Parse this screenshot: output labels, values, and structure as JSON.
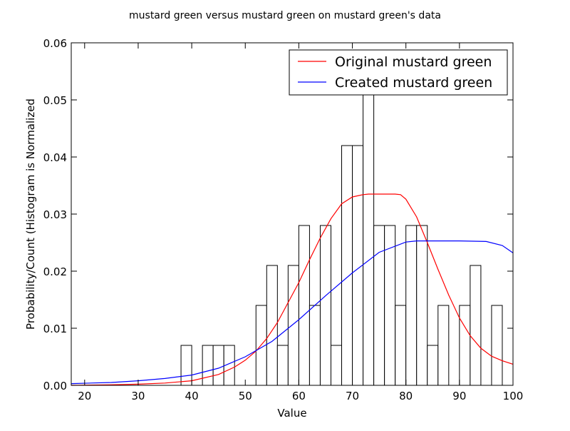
{
  "chart_data": {
    "type": "histogram_with_lines",
    "title": "mustard green versus mustard green on mustard green's data",
    "xlabel": "Value",
    "ylabel": "Probability/Count (Histogram is Normalized",
    "xlim": [
      17.5,
      100
    ],
    "ylim": [
      0,
      0.06
    ],
    "xticks": [
      20,
      30,
      40,
      50,
      60,
      70,
      80,
      90,
      100
    ],
    "yticks": [
      0.0,
      0.01,
      0.02,
      0.03,
      0.04,
      0.05,
      0.06
    ],
    "ytick_labels": [
      "0.00",
      "0.01",
      "0.02",
      "0.03",
      "0.04",
      "0.05",
      "0.06"
    ],
    "legend_position": "top-right",
    "histogram": {
      "bin_width": 2,
      "bins": [
        {
          "x0": 38,
          "value": 0.007
        },
        {
          "x0": 42,
          "value": 0.007
        },
        {
          "x0": 44,
          "value": 0.007
        },
        {
          "x0": 46,
          "value": 0.007
        },
        {
          "x0": 52,
          "value": 0.014
        },
        {
          "x0": 54,
          "value": 0.021
        },
        {
          "x0": 56,
          "value": 0.007
        },
        {
          "x0": 58,
          "value": 0.021
        },
        {
          "x0": 60,
          "value": 0.028
        },
        {
          "x0": 62,
          "value": 0.014
        },
        {
          "x0": 64,
          "value": 0.028
        },
        {
          "x0": 66,
          "value": 0.007
        },
        {
          "x0": 68,
          "value": 0.042
        },
        {
          "x0": 70,
          "value": 0.042
        },
        {
          "x0": 72,
          "value": 0.056
        },
        {
          "x0": 74,
          "value": 0.028
        },
        {
          "x0": 76,
          "value": 0.028
        },
        {
          "x0": 78,
          "value": 0.014
        },
        {
          "x0": 80,
          "value": 0.028
        },
        {
          "x0": 82,
          "value": 0.028
        },
        {
          "x0": 84,
          "value": 0.007
        },
        {
          "x0": 86,
          "value": 0.014
        },
        {
          "x0": 90,
          "value": 0.014
        },
        {
          "x0": 92,
          "value": 0.021
        },
        {
          "x0": 96,
          "value": 0.014
        }
      ]
    },
    "series": [
      {
        "name": "Original mustard green",
        "color": "#ff0000",
        "x": [
          17.5,
          25,
          30,
          35,
          40,
          45,
          48,
          50,
          52,
          54,
          56,
          58,
          60,
          62,
          64,
          66,
          68,
          70,
          72,
          73,
          75,
          78,
          79,
          80,
          82,
          84,
          86,
          88,
          90,
          92,
          94,
          96,
          98,
          100
        ],
        "y": [
          0.0,
          0.0001,
          0.0002,
          0.0004,
          0.0008,
          0.0019,
          0.0032,
          0.0044,
          0.006,
          0.0082,
          0.011,
          0.0145,
          0.018,
          0.022,
          0.0258,
          0.0292,
          0.0318,
          0.033,
          0.0334,
          0.0335,
          0.0335,
          0.0335,
          0.0334,
          0.0326,
          0.0295,
          0.025,
          0.0203,
          0.0158,
          0.0118,
          0.0087,
          0.0065,
          0.0051,
          0.0043,
          0.0037
        ]
      },
      {
        "name": "Created mustard green",
        "color": "#0000ff",
        "x": [
          17.5,
          25,
          30,
          35,
          40,
          45,
          50,
          55,
          60,
          65,
          70,
          75,
          80,
          82,
          85,
          90,
          95,
          98,
          100
        ],
        "y": [
          0.0003,
          0.0005,
          0.0008,
          0.0012,
          0.0018,
          0.003,
          0.005,
          0.0077,
          0.0115,
          0.0157,
          0.0197,
          0.0233,
          0.0251,
          0.0253,
          0.0253,
          0.0253,
          0.0252,
          0.0245,
          0.0232
        ]
      }
    ]
  }
}
